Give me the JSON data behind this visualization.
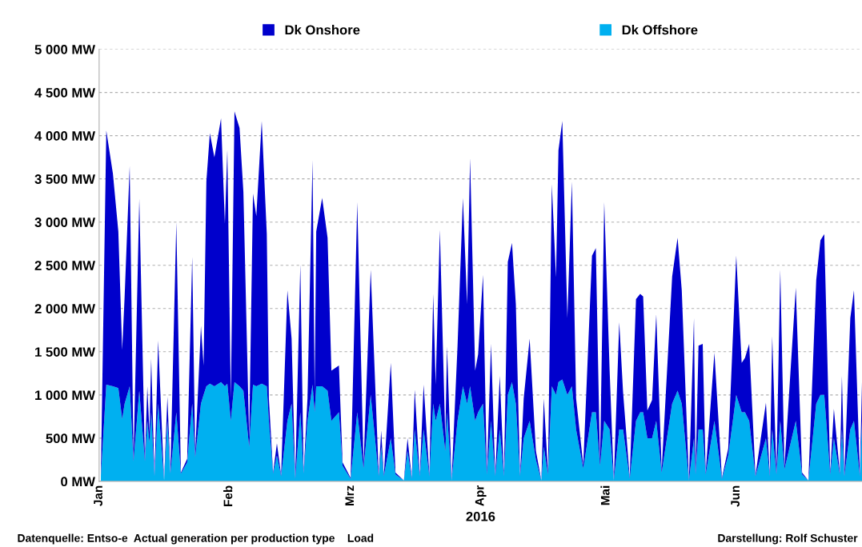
{
  "chart_data": {
    "type": "area",
    "stacked": true,
    "xlabel": "2016",
    "annotations": [
      "Datenquelle: Entso-e  Actual generation per production type    Load",
      "Darstellung: Rolf Schuster"
    ],
    "x": [
      "2016-01-01T10:00",
      "2016-01-02T17:00",
      "2016-01-04T07:00",
      "2016-01-05T14:00",
      "2016-01-06T12:00",
      "2016-01-07T02:00",
      "2016-01-08T07:00",
      "2016-01-09T05:00",
      "2016-01-10T14:00",
      "2016-01-11T22:00",
      "2016-01-12T12:00",
      "2016-01-13T00:00",
      "2016-01-13T10:00",
      "2016-01-14T05:00",
      "2016-01-15T02:00",
      "2016-01-16T12:00",
      "2016-01-17T07:00",
      "2016-01-18T00:00",
      "2016-01-19T10:00",
      "2016-01-20T12:00",
      "2016-01-22T00:00",
      "2016-01-23T05:00",
      "2016-01-23T22:00",
      "2016-01-25T07:00",
      "2016-01-25T22:00",
      "2016-01-26T14:00",
      "2016-01-27T10:00",
      "2016-01-28T12:00",
      "2016-01-30T02:00",
      "2016-01-31T00:00",
      "2016-01-31T14:00",
      "2016-02-01T10:00",
      "2016-02-02T07:00",
      "2016-02-03T12:00",
      "2016-02-04T10:00",
      "2016-02-05T19:00",
      "2016-02-06T17:00",
      "2016-02-07T12:00",
      "2016-02-08T19:00",
      "2016-02-10T00:00",
      "2016-02-10T12:00",
      "2016-02-11T12:00",
      "2016-02-12T10:00",
      "2016-02-13T10:00",
      "2016-02-14T22:00",
      "2016-02-15T22:00",
      "2016-02-16T19:00",
      "2016-02-18T00:00",
      "2016-02-18T19:00",
      "2016-02-19T17:00",
      "2016-02-20T22:00",
      "2016-02-21T10:00",
      "2016-02-21T19:00",
      "2016-02-23T05:00",
      "2016-02-24T12:00",
      "2016-02-25T10:00",
      "2016-02-27T05:00",
      "2016-02-28T02:00",
      "2016-03-01T00:00",
      "2016-03-02T14:00",
      "2016-03-04T02:00",
      "2016-03-05T19:00",
      "2016-03-07T17:00",
      "2016-03-08T07:00",
      "2016-03-08T22:00",
      "2016-03-10T14:00",
      "2016-03-11T17:00",
      "2016-03-13T17:00",
      "2016-03-14T14:00",
      "2016-03-15T14:00",
      "2016-03-16T07:00",
      "2016-03-17T12:00",
      "2016-03-18T10:00",
      "2016-03-19T19:00",
      "2016-03-20T17:00",
      "2016-03-21T07:00",
      "2016-03-22T07:00",
      "2016-03-23T14:00",
      "2016-03-24T00:00",
      "2016-03-25T02:00",
      "2016-03-26T12:00",
      "2016-03-27T19:00",
      "2016-03-28T19:00",
      "2016-03-29T12:00",
      "2016-03-30T17:00",
      "2016-03-31T10:00",
      "2016-04-01T14:00",
      "2016-04-02T12:00",
      "2016-04-03T12:00",
      "2016-04-04T12:00",
      "2016-04-05T14:00",
      "2016-04-06T14:00",
      "2016-04-07T12:00",
      "2016-04-08T12:00",
      "2016-04-09T10:00",
      "2016-04-10T10:00",
      "2016-04-11T07:00",
      "2016-04-12T17:00",
      "2016-04-14T05:00",
      "2016-04-15T12:00",
      "2016-04-16T02:00",
      "2016-04-17T02:00",
      "2016-04-18T00:00",
      "2016-04-19T00:00",
      "2016-04-19T14:00",
      "2016-04-20T12:00",
      "2016-04-21T17:00",
      "2016-04-22T19:00",
      "2016-04-23T19:00",
      "2016-04-25T12:00",
      "2016-04-27T14:00",
      "2016-04-28T12:00",
      "2016-04-29T12:00",
      "2016-04-30T12:00",
      "2016-05-01T19:00",
      "2016-05-02T19:00",
      "2016-05-04T02:00",
      "2016-05-05T00:00",
      "2016-05-06T14:00",
      "2016-05-08T02:00",
      "2016-05-09T02:00",
      "2016-05-09T19:00",
      "2016-05-10T19:00",
      "2016-05-11T22:00",
      "2016-05-12T22:00",
      "2016-05-14T05:00",
      "2016-05-16T17:00",
      "2016-05-18T00:00",
      "2016-05-19T00:00",
      "2016-05-20T17:00",
      "2016-05-21T22:00",
      "2016-05-22T07:00",
      "2016-05-23T00:00",
      "2016-05-24T00:00",
      "2016-05-24T17:00",
      "2016-05-26T19:00",
      "2016-05-28T14:00",
      "2016-05-30T02:00",
      "2016-06-01T00:00",
      "2016-06-02T07:00",
      "2016-06-03T02:00",
      "2016-06-04T02:00",
      "2016-06-05T14:00",
      "2016-06-08T02:00",
      "2016-06-09T00:00",
      "2016-06-09T14:00",
      "2016-06-10T14:00",
      "2016-06-11T12:00",
      "2016-06-12T12:00",
      "2016-06-15T05:00",
      "2016-06-16T17:00",
      "2016-06-18T05:00",
      "2016-06-20T02:00",
      "2016-06-21T02:00",
      "2016-06-22T00:00",
      "2016-06-23T10:00",
      "2016-06-24T07:00",
      "2016-06-25T17:00",
      "2016-06-26T05:00",
      "2016-06-26T19:00",
      "2016-06-28T05:00",
      "2016-06-29T02:00",
      "2016-06-30T12:00",
      "2016-07-01T00:00"
    ],
    "series": [
      {
        "name": "Dk Offshore",
        "color": "#00b0f0",
        "values": [
          60,
          1120,
          1100,
          1080,
          720,
          900,
          1100,
          230,
          1050,
          230,
          700,
          450,
          800,
          60,
          900,
          10,
          700,
          90,
          800,
          90,
          220,
          900,
          280,
          900,
          1000,
          1100,
          1130,
          1100,
          1150,
          1100,
          1130,
          700,
          1150,
          1100,
          1050,
          400,
          1120,
          1100,
          1130,
          1100,
          700,
          90,
          300,
          60,
          700,
          900,
          30,
          800,
          90,
          700,
          1120,
          800,
          1100,
          1100,
          1050,
          700,
          800,
          180,
          30,
          800,
          150,
          1000,
          60,
          400,
          60,
          500,
          80,
          10,
          350,
          30,
          600,
          60,
          600,
          60,
          900,
          700,
          900,
          350,
          800,
          10,
          700,
          1100,
          900,
          1100,
          700,
          800,
          900,
          80,
          700,
          60,
          600,
          60,
          1000,
          1150,
          900,
          60,
          500,
          700,
          250,
          10,
          400,
          80,
          1100,
          1000,
          1150,
          1180,
          1000,
          1100,
          600,
          150,
          800,
          800,
          180,
          700,
          600,
          10,
          600,
          600,
          30,
          700,
          800,
          800,
          500,
          500,
          700,
          100,
          900,
          1050,
          900,
          10,
          500,
          80,
          600,
          600,
          80,
          700,
          30,
          300,
          1000,
          800,
          800,
          700,
          60,
          500,
          60,
          600,
          80,
          700,
          140,
          700,
          80,
          10,
          900,
          1000,
          1000,
          80,
          500,
          80,
          600,
          60,
          600,
          700,
          60,
          700
        ]
      },
      {
        "name": "Dk Onshore",
        "color": "#0000cc",
        "values": [
          10,
          2940,
          2460,
          1810,
          800,
          1240,
          2550,
          30,
          2220,
          30,
          400,
          120,
          620,
          10,
          730,
          0,
          280,
          10,
          2200,
          10,
          40,
          1700,
          40,
          900,
          340,
          2370,
          2900,
          2650,
          3050,
          1880,
          2710,
          260,
          3130,
          2990,
          2300,
          100,
          2210,
          1970,
          3040,
          1760,
          260,
          10,
          140,
          10,
          1510,
          750,
          10,
          1710,
          10,
          260,
          2600,
          230,
          1790,
          2180,
          1770,
          580,
          540,
          40,
          10,
          2430,
          40,
          1450,
          10,
          190,
          10,
          870,
          20,
          0,
          150,
          10,
          460,
          10,
          520,
          10,
          1270,
          420,
          2010,
          150,
          760,
          0,
          860,
          2180,
          1150,
          2640,
          580,
          670,
          1490,
          20,
          890,
          10,
          620,
          10,
          1540,
          1610,
          1150,
          10,
          460,
          950,
          100,
          0,
          560,
          20,
          2340,
          1360,
          2680,
          2990,
          890,
          2370,
          360,
          40,
          1810,
          1900,
          40,
          2530,
          680,
          0,
          1240,
          430,
          10,
          1410,
          1370,
          1340,
          320,
          440,
          1230,
          30,
          1470,
          1770,
          1310,
          0,
          1390,
          20,
          970,
          990,
          20,
          790,
          10,
          80,
          1610,
          570,
          630,
          890,
          10,
          410,
          10,
          1080,
          20,
          1750,
          30,
          1540,
          20,
          0,
          1430,
          1790,
          1860,
          20,
          340,
          20,
          620,
          10,
          1290,
          1510,
          10,
          450
        ]
      }
    ],
    "xlim": [
      "2016-01-01",
      "2016-07-01"
    ],
    "xticks": [
      {
        "value": "2016-01-01",
        "label": "Jan"
      },
      {
        "value": "2016-02-01",
        "label": "Feb"
      },
      {
        "value": "2016-03-01",
        "label": "Mrz"
      },
      {
        "value": "2016-04-01",
        "label": "Apr"
      },
      {
        "value": "2016-05-01",
        "label": "Mai"
      },
      {
        "value": "2016-06-01",
        "label": "Jun"
      }
    ],
    "ylim": [
      0,
      5000
    ],
    "yticks": [
      {
        "value": 0,
        "label": "0 MW"
      },
      {
        "value": 500,
        "label": "500 MW"
      },
      {
        "value": 1000,
        "label": "1 000 MW"
      },
      {
        "value": 1500,
        "label": "1 500 MW"
      },
      {
        "value": 2000,
        "label": "2 000 MW"
      },
      {
        "value": 2500,
        "label": "2 500 MW"
      },
      {
        "value": 3000,
        "label": "3 000 MW"
      },
      {
        "value": 3500,
        "label": "3 500 MW"
      },
      {
        "value": 4000,
        "label": "4 000 MW"
      },
      {
        "value": 4500,
        "label": "4 500 MW"
      },
      {
        "value": 5000,
        "label": "5 000 MW"
      }
    ],
    "grid": "y",
    "legend": "top"
  }
}
